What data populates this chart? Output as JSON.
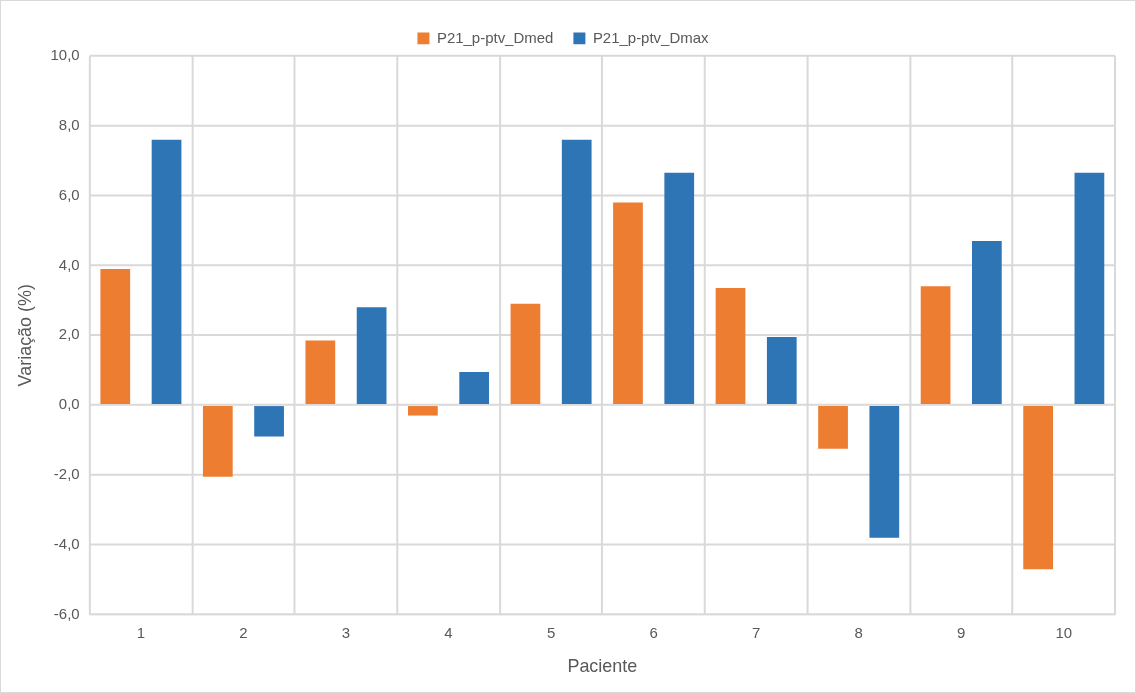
{
  "chart_data": {
    "type": "bar",
    "xlabel": "Paciente",
    "ylabel": "Variação (%)",
    "categories": [
      "1",
      "2",
      "3",
      "4",
      "5",
      "6",
      "7",
      "8",
      "9",
      "10"
    ],
    "series": [
      {
        "name": "P21_p-ptv_Dmed",
        "color": "#ed7d31",
        "values": [
          3.9,
          -2.05,
          1.85,
          -0.3,
          2.9,
          5.8,
          3.35,
          -1.25,
          3.4,
          -4.7
        ]
      },
      {
        "name": "P21_p-ptv_Dmax",
        "color": "#2e75b6",
        "values": [
          7.6,
          -0.9,
          2.8,
          0.95,
          7.6,
          6.65,
          1.95,
          -3.8,
          4.7,
          6.65
        ]
      }
    ],
    "ylim": [
      -6,
      10
    ],
    "yticks": [
      {
        "value": -6,
        "label": "-6,0"
      },
      {
        "value": -4,
        "label": "-4,0"
      },
      {
        "value": -2,
        "label": "-2,0"
      },
      {
        "value": 0,
        "label": "0,0"
      },
      {
        "value": 2,
        "label": "2,0"
      },
      {
        "value": 4,
        "label": "4,0"
      },
      {
        "value": 6,
        "label": "6,0"
      },
      {
        "value": 8,
        "label": "8,0"
      },
      {
        "value": 10,
        "label": "10,0"
      }
    ],
    "grid": true,
    "legend": "top"
  }
}
